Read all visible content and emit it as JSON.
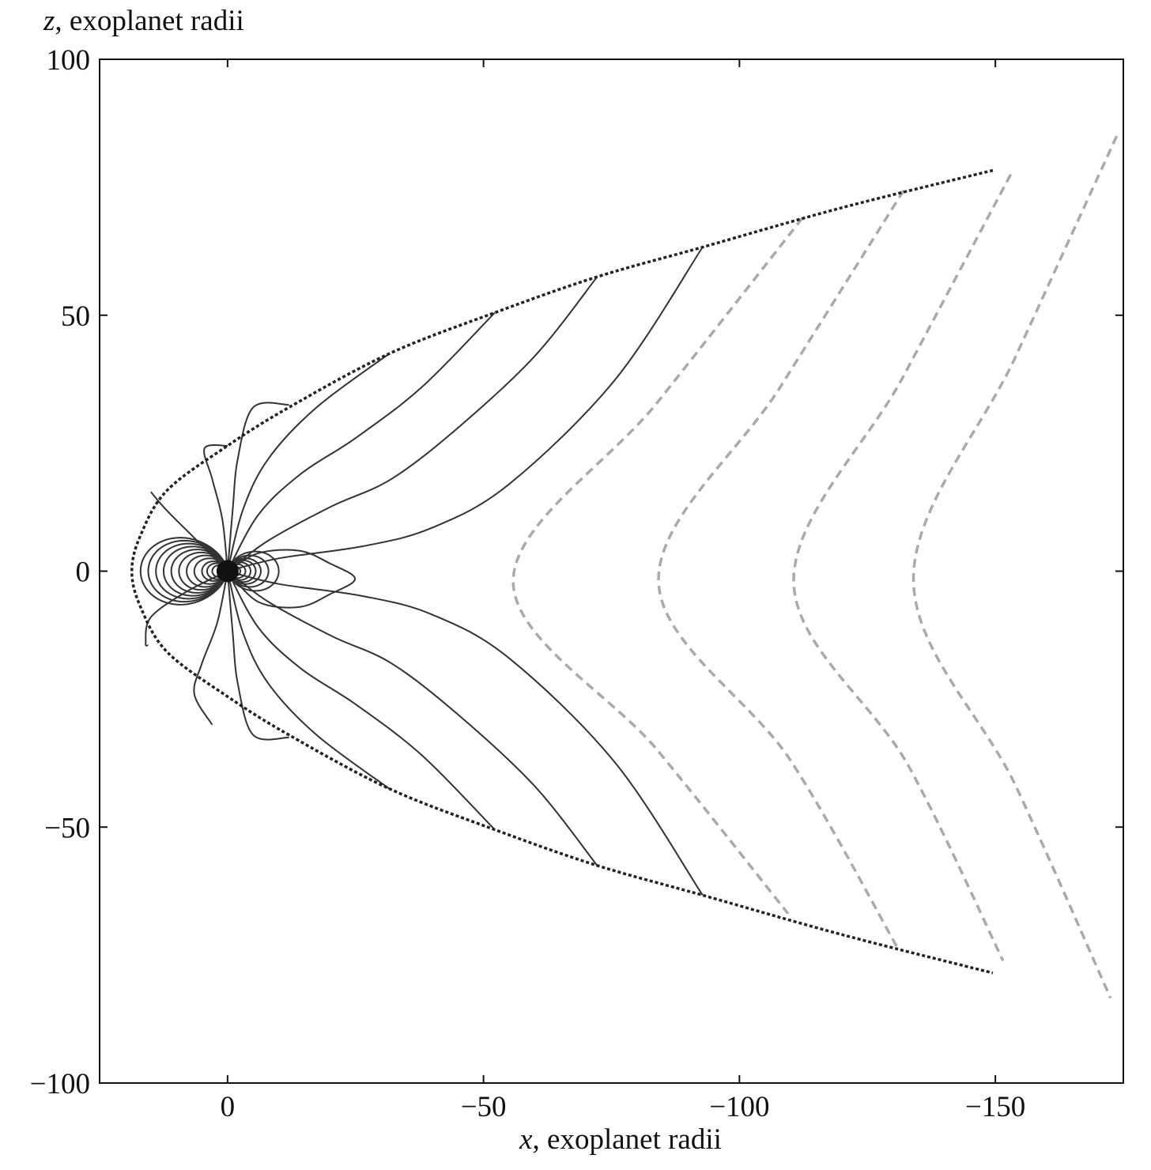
{
  "chart_data": {
    "type": "line",
    "title": "",
    "xlabel_var": "x",
    "xlabel_rest": ", exoplanet radii",
    "ylabel_var": "z",
    "ylabel_rest": ", exoplanet radii",
    "xlim": [
      25,
      -175
    ],
    "ylim": [
      -100,
      100
    ],
    "x_ticks": [
      0,
      -50,
      -100,
      -150
    ],
    "x_tick_labels": [
      "0",
      "−50",
      "−100",
      "−150"
    ],
    "y_ticks": [
      100,
      50,
      0,
      -50,
      -100
    ],
    "y_tick_labels": [
      "100",
      "50",
      "0",
      "−50",
      "−100"
    ],
    "grid": false,
    "colors": {
      "field_lines": "#333333",
      "boundary": "#222222",
      "dashed": "#aaaaaa"
    },
    "magnetopause_boundary": {
      "style": "dotted",
      "points": [
        [
          -149.5,
          78.3
        ],
        [
          -120,
          71
        ],
        [
          -92.8,
          63.3
        ],
        [
          -72.2,
          57.5
        ],
        [
          -52.2,
          50.5
        ],
        [
          -31.6,
          42.5
        ],
        [
          -12,
          32
        ],
        [
          0,
          24.5
        ],
        [
          11.8,
          15.8
        ],
        [
          17,
          7
        ],
        [
          18.7,
          0
        ],
        [
          17,
          -7
        ],
        [
          11.8,
          -15.8
        ],
        [
          0,
          -24.5
        ],
        [
          -12,
          -32
        ],
        [
          -31.6,
          -42.5
        ],
        [
          -52.2,
          -50.5
        ],
        [
          -72.2,
          -57.5
        ],
        [
          -92.8,
          -63.3
        ],
        [
          -120,
          -71
        ],
        [
          -149.5,
          -78.5
        ]
      ]
    },
    "open_field_lines": [
      [
        [
          0,
          0
        ],
        [
          -10,
          2.5
        ],
        [
          -26.6,
          4.9
        ],
        [
          -40,
          8.5
        ],
        [
          -55,
          17
        ],
        [
          -75.7,
          37.4
        ],
        [
          -92.8,
          63.3
        ]
      ],
      [
        [
          0,
          0
        ],
        [
          -8,
          6
        ],
        [
          -20.4,
          12.7
        ],
        [
          -32,
          18
        ],
        [
          -45,
          28
        ],
        [
          -60,
          42
        ],
        [
          -72.2,
          57.5
        ]
      ],
      [
        [
          0,
          0
        ],
        [
          -6,
          11
        ],
        [
          -14.3,
          19
        ],
        [
          -25,
          26
        ],
        [
          -38,
          36
        ],
        [
          -52.2,
          50.5
        ]
      ],
      [
        [
          0,
          0
        ],
        [
          -3,
          12
        ],
        [
          -8,
          22
        ],
        [
          -17.4,
          32
        ],
        [
          -31.6,
          42.5
        ]
      ],
      [
        [
          0,
          0
        ],
        [
          -1,
          12
        ],
        [
          -2,
          22
        ],
        [
          -5,
          32
        ],
        [
          -12,
          32.5
        ]
      ],
      [
        [
          0,
          0
        ],
        [
          1,
          10
        ],
        [
          3,
          18
        ],
        [
          4.5,
          24
        ],
        [
          0,
          24.5
        ]
      ],
      [
        [
          0,
          0
        ],
        [
          -92.8,
          -63.3
        ]
      ],
      [
        [
          0,
          0
        ],
        [
          -10,
          -2.5
        ],
        [
          -26.6,
          -4.9
        ],
        [
          -40,
          -8.5
        ],
        [
          -55,
          -17
        ],
        [
          -75.7,
          -37.4
        ],
        [
          -92.8,
          -63.3
        ]
      ],
      [
        [
          0,
          0
        ],
        [
          -8,
          -6
        ],
        [
          -20.4,
          -12.7
        ],
        [
          -32,
          -18
        ],
        [
          -45,
          -28
        ],
        [
          -60,
          -42
        ],
        [
          -72.2,
          -57.5
        ]
      ],
      [
        [
          0,
          0
        ],
        [
          -6,
          -11
        ],
        [
          -14.3,
          -19
        ],
        [
          -25,
          -26
        ],
        [
          -38,
          -36
        ],
        [
          -52.2,
          -50.5
        ]
      ],
      [
        [
          0,
          0
        ],
        [
          -3,
          -12
        ],
        [
          -8,
          -22
        ],
        [
          -17.4,
          -32
        ],
        [
          -31.6,
          -42.5
        ]
      ],
      [
        [
          0,
          0
        ],
        [
          -1,
          -12
        ],
        [
          -2,
          -22
        ],
        [
          -5,
          -32
        ],
        [
          -12,
          -32.5
        ]
      ],
      [
        [
          0,
          0
        ],
        [
          2,
          -10
        ],
        [
          5,
          -18
        ],
        [
          6.5,
          -24
        ],
        [
          3,
          -30
        ]
      ],
      [
        [
          0,
          0
        ],
        [
          6,
          6
        ],
        [
          12,
          12
        ],
        [
          15,
          15.5
        ]
      ],
      [
        [
          0,
          0
        ],
        [
          8,
          -4
        ],
        [
          15,
          -9
        ],
        [
          16,
          -14
        ],
        [
          15.5,
          -14.5
        ]
      ]
    ],
    "tail_closed_line": [
      [
        0,
        0
      ],
      [
        -6,
        3.5
      ],
      [
        -14,
        4
      ],
      [
        -20,
        1.5
      ],
      [
        -24.9,
        -1.5
      ],
      [
        -20,
        -4.5
      ],
      [
        -14,
        -7
      ],
      [
        -6,
        -6
      ],
      [
        0,
        0
      ]
    ],
    "dayside_dipole_loops_L": [
      2,
      3,
      4,
      5,
      6.5,
      8,
      9.5,
      11,
      12.5,
      14,
      15.5,
      17
    ],
    "nightside_dipole_loops_L": [
      1.5,
      2.5,
      3.5,
      4.5,
      5.5,
      6.5,
      8,
      10
    ],
    "dashed_v_lines": [
      [
        [
          -112.3,
          69
        ],
        [
          -84,
          33
        ],
        [
          -55.8,
          -2
        ],
        [
          -84,
          -35
        ],
        [
          -109.5,
          -66.9
        ]
      ],
      [
        [
          -132.1,
          74.4
        ],
        [
          -108,
          36
        ],
        [
          -84.2,
          -2
        ],
        [
          -110,
          -37
        ],
        [
          -131,
          -73.8
        ]
      ],
      [
        [
          -153,
          77.5
        ],
        [
          -132,
          38
        ],
        [
          -110.6,
          -2
        ],
        [
          -133,
          -38
        ],
        [
          -151.5,
          -76.1
        ]
      ],
      [
        [
          -173.7,
          85
        ],
        [
          -154,
          42
        ],
        [
          -134,
          -1.5
        ],
        [
          -154,
          -42
        ],
        [
          -172.5,
          -83.4
        ]
      ]
    ]
  }
}
